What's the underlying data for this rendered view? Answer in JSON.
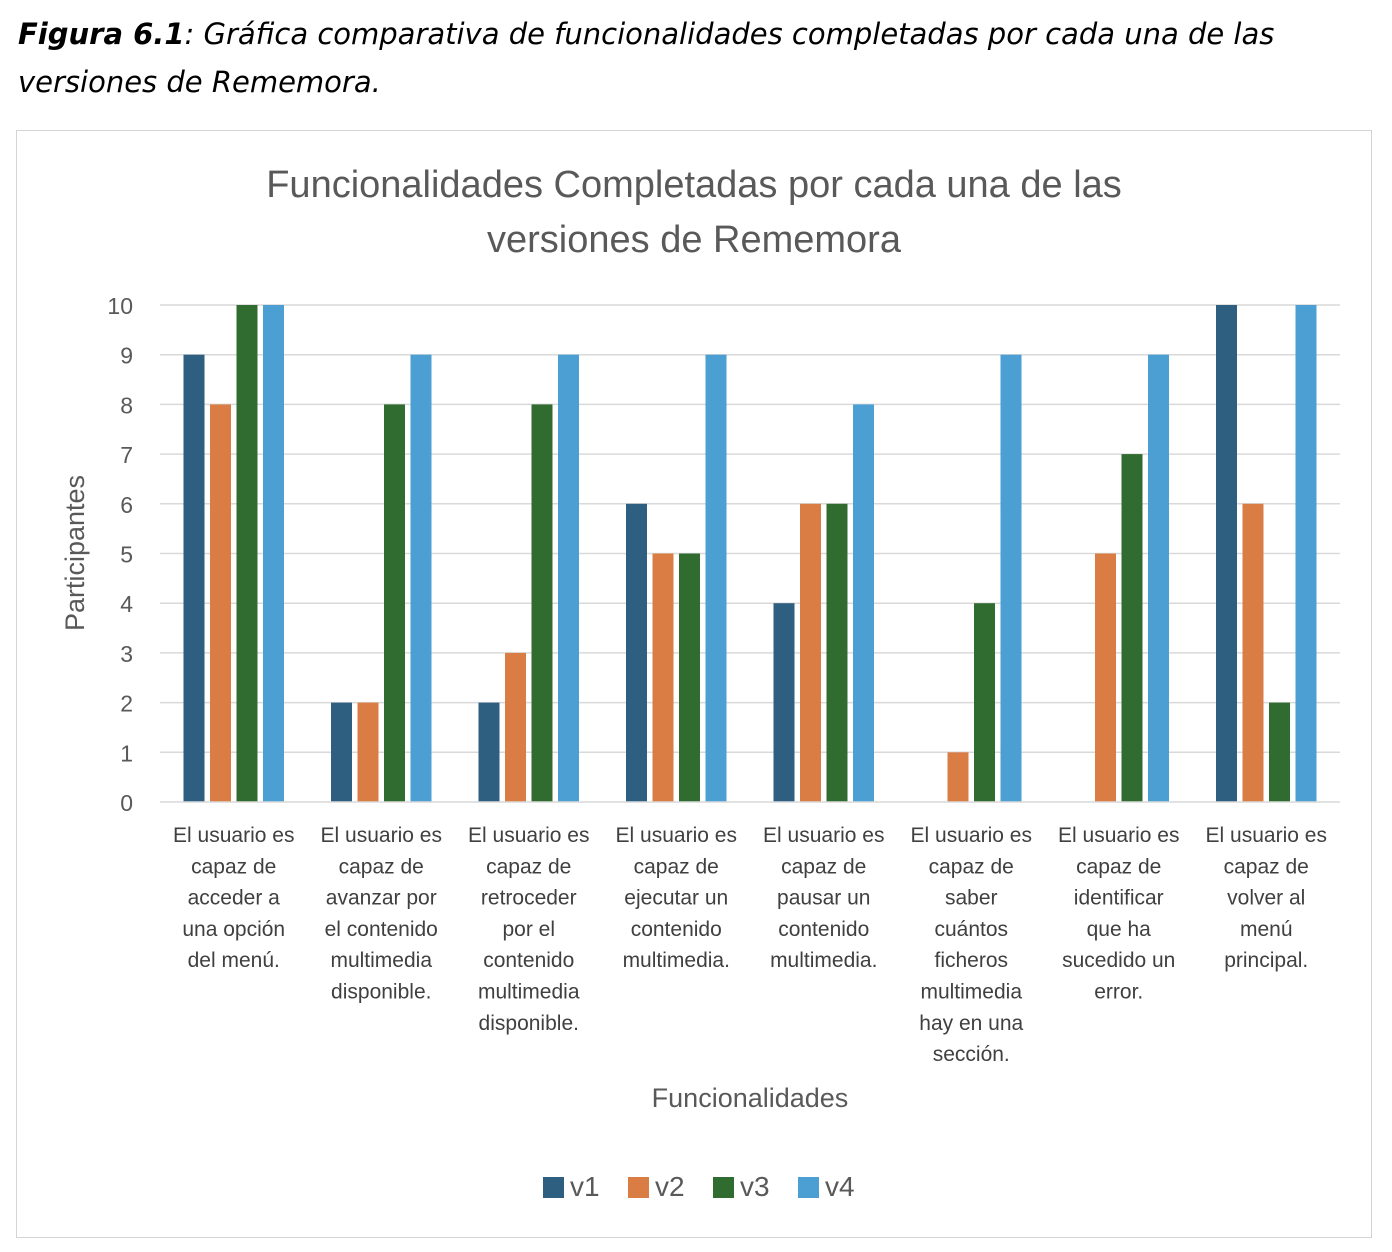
{
  "caption": {
    "label": "Figura 6.1",
    "text": ": Gráfica comparativa de funcionalidades completadas por cada una de las versiones de Rememora."
  },
  "colors": {
    "v1": "#2e5f80",
    "v2": "#d97d45",
    "v3": "#306b30",
    "v4": "#4b9fd3",
    "grid": "#d9d9d9",
    "text": "#595959"
  },
  "chart_data": {
    "type": "bar",
    "title": "Funcionalidades Completadas por cada una de las versiones de Rememora",
    "title_lines": [
      "Funcionalidades Completadas por cada una de las",
      "versiones de Rememora"
    ],
    "xlabel": "Funcionalidades",
    "ylabel": "Participantes",
    "ylim": [
      0,
      10
    ],
    "yticks": [
      0,
      1,
      2,
      3,
      4,
      5,
      6,
      7,
      8,
      9,
      10
    ],
    "grid": true,
    "legend": "bottom",
    "categories": [
      "El usuario es capaz de acceder a una opción del menú.",
      "El usuario es capaz de avanzar por el contenido multimedia disponible.",
      "El usuario es capaz de retroceder por el contenido multimedia disponible.",
      "El usuario es capaz de ejecutar un contenido multimedia.",
      "El usuario es capaz de pausar un contenido multimedia.",
      "El usuario es capaz de saber cuántos ficheros multimedia hay en una sección.",
      "El usuario es capaz de identificar que ha sucedido un error.",
      "El usuario es capaz de volver al menú principal."
    ],
    "category_lines": [
      [
        "El usuario es",
        "capaz de",
        "acceder a",
        "una opción",
        "del menú."
      ],
      [
        "El usuario es",
        "capaz de",
        "avanzar por",
        "el contenido",
        "multimedia",
        "disponible."
      ],
      [
        "El usuario es",
        "capaz de",
        "retroceder",
        "por el",
        "contenido",
        "multimedia",
        "disponible."
      ],
      [
        "El usuario es",
        "capaz de",
        "ejecutar un",
        "contenido",
        "multimedia."
      ],
      [
        "El usuario es",
        "capaz de",
        "pausar un",
        "contenido",
        "multimedia."
      ],
      [
        "El usuario es",
        "capaz de",
        "saber",
        "cuántos",
        "ficheros",
        "multimedia",
        "hay en una",
        "sección."
      ],
      [
        "El usuario es",
        "capaz de",
        "identificar",
        "que ha",
        "sucedido un",
        "error."
      ],
      [
        "El usuario es",
        "capaz de",
        "volver al",
        "menú",
        "principal."
      ]
    ],
    "series": [
      {
        "name": "v1",
        "values": [
          9,
          2,
          2,
          6,
          4,
          0,
          0,
          10
        ]
      },
      {
        "name": "v2",
        "values": [
          8,
          2,
          3,
          5,
          6,
          1,
          5,
          6
        ]
      },
      {
        "name": "v3",
        "values": [
          10,
          8,
          8,
          5,
          6,
          4,
          7,
          2
        ]
      },
      {
        "name": "v4",
        "values": [
          10,
          9,
          9,
          9,
          8,
          9,
          9,
          10
        ]
      }
    ]
  }
}
